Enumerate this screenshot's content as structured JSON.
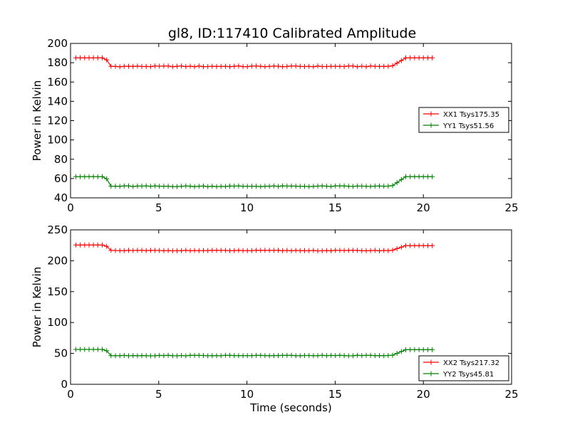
{
  "title": "gl8, ID:117410 Calibrated Amplitude",
  "chart_data": [
    {
      "type": "line",
      "title": "gl8, ID:117410 Calibrated Amplitude",
      "xlabel": "",
      "ylabel": "Power in Kelvin",
      "xlim": [
        0,
        25
      ],
      "ylim": [
        40,
        200
      ],
      "xticks": [
        0,
        5,
        10,
        15,
        20,
        25
      ],
      "yticks": [
        40,
        60,
        80,
        100,
        120,
        140,
        160,
        180,
        200
      ],
      "grid": false,
      "legend_position": "center-right",
      "x_range": [
        0.3,
        20.5
      ],
      "points_per_series": 82,
      "series": [
        {
          "name": "XX1 Tsys175.35",
          "color": "#ff0000",
          "start_level": 185,
          "plateau": 176.2,
          "end_level": 185,
          "drop_time": [
            2.0,
            2.2
          ],
          "rise_time": [
            18.2,
            19.0
          ]
        },
        {
          "name": "YY1 Tsys51.56",
          "color": "#008000",
          "start_level": 62,
          "plateau": 52,
          "end_level": 62,
          "drop_time": [
            2.0,
            2.2
          ],
          "rise_time": [
            18.2,
            19.0
          ]
        }
      ]
    },
    {
      "type": "line",
      "title": "",
      "xlabel": "Time (seconds)",
      "ylabel": "Power in Kelvin",
      "xlim": [
        0,
        25
      ],
      "ylim": [
        0,
        250
      ],
      "xticks": [
        0,
        5,
        10,
        15,
        20,
        25
      ],
      "yticks": [
        0,
        50,
        100,
        150,
        200,
        250
      ],
      "grid": false,
      "legend_position": "bottom-right",
      "x_range": [
        0.3,
        20.5
      ],
      "points_per_series": 82,
      "series": [
        {
          "name": "XX2 Tsys217.32",
          "color": "#ff0000",
          "start_level": 225.5,
          "plateau": 216.5,
          "end_level": 224.5,
          "drop_time": [
            2.0,
            2.2
          ],
          "rise_time": [
            18.2,
            19.0
          ]
        },
        {
          "name": "YY2 Tsys45.81",
          "color": "#008000",
          "start_level": 56.5,
          "plateau": 46.5,
          "end_level": 56,
          "drop_time": [
            2.0,
            2.2
          ],
          "rise_time": [
            18.2,
            19.0
          ]
        }
      ]
    }
  ]
}
